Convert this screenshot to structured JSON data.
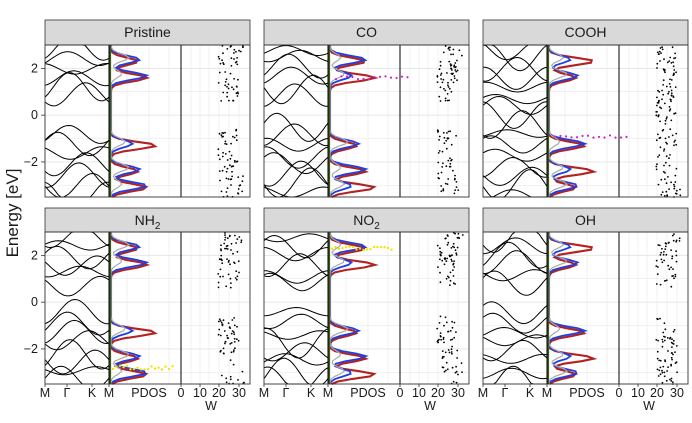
{
  "chart_data": {
    "type": "line",
    "ylabel": "Energy [eV]",
    "ylim": [
      -3.5,
      3
    ],
    "yticks": [
      2,
      0,
      -2
    ],
    "x_bands_labels": [
      "M",
      "Γ",
      "K",
      "M"
    ],
    "x_pdos_label": "PDOS",
    "x_w_ticks": [
      "0",
      "10",
      "20",
      "30"
    ],
    "x_w_label": "W",
    "colors": {
      "strip_bg": "#d9d9d9",
      "band": "#000000",
      "pdos_blue": "#1f3fe0",
      "pdos_red": "#b22222",
      "pdos_magenta": "#d01fd0",
      "pdos_olive": "#3a5a1a",
      "pdos_yellow": "#f2e600",
      "pdos_gray": "#aaaaaa"
    },
    "panels": [
      {
        "title": "Pristine",
        "sub": "",
        "title_tail": ""
      },
      {
        "title": "CO",
        "sub": "",
        "title_tail": ""
      },
      {
        "title": "COOH",
        "sub": "",
        "title_tail": ""
      },
      {
        "title": "NH",
        "sub": "2",
        "title_tail": ""
      },
      {
        "title": "NO",
        "sub": "2",
        "title_tail": ""
      },
      {
        "title": "OH",
        "sub": "",
        "title_tail": ""
      }
    ]
  }
}
